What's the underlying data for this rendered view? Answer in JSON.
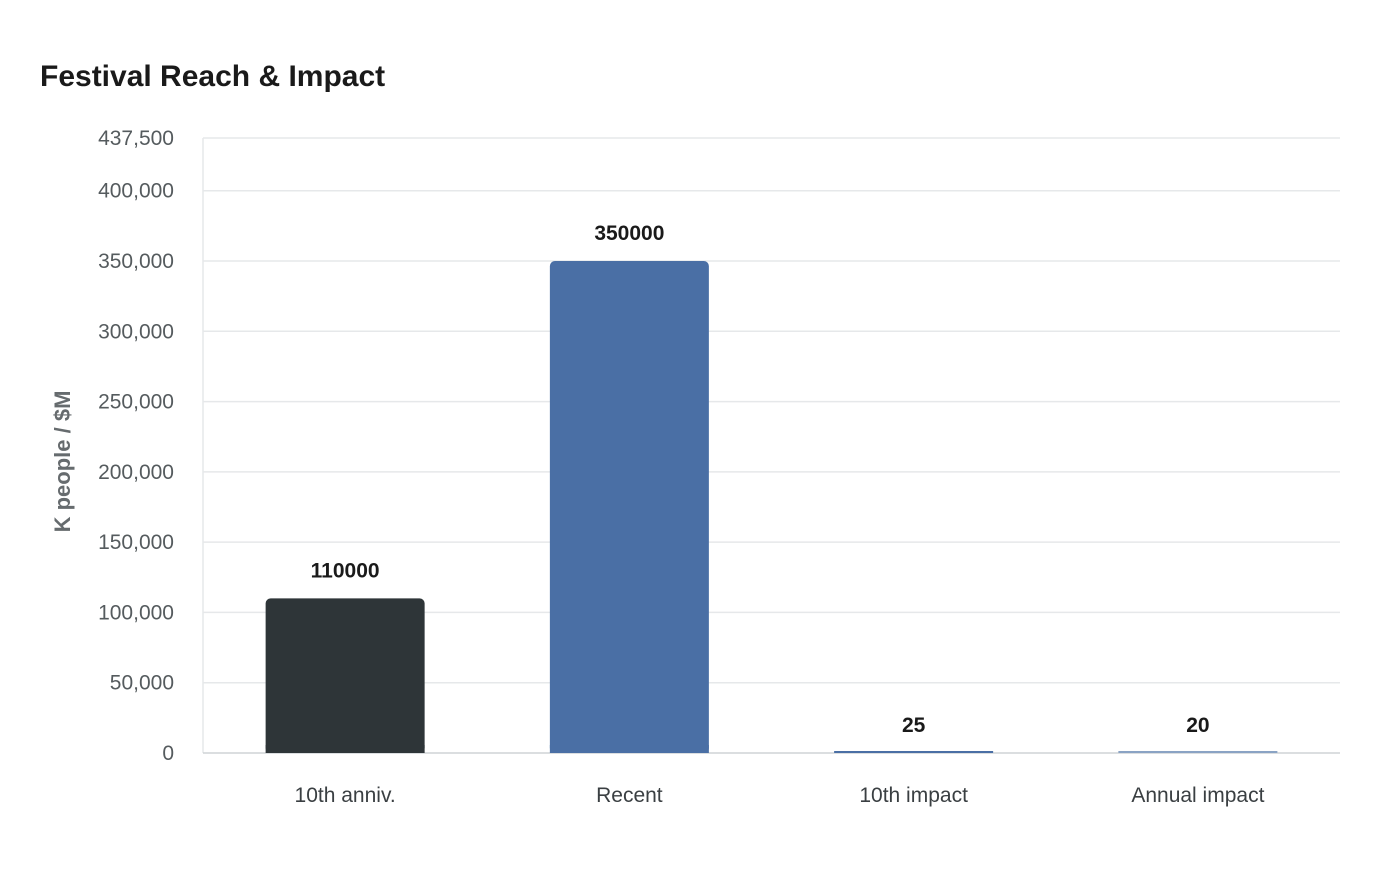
{
  "chart_data": {
    "type": "bar",
    "title": "Festival Reach & Impact",
    "xlabel": "",
    "ylabel": "K people / $M",
    "categories": [
      "10th anniv.",
      "Recent",
      "10th impact",
      "Annual impact"
    ],
    "values": [
      110000,
      350000,
      25,
      20
    ],
    "bar_colors": [
      "#2e3538",
      "#4a6fa5",
      "#4a6fa5",
      "#8aa3c4"
    ],
    "ylim": [
      0,
      437500
    ],
    "yticks": [
      0,
      50000,
      100000,
      150000,
      200000,
      250000,
      300000,
      350000,
      400000,
      437500
    ],
    "ytick_labels": [
      "0",
      "50,000",
      "100,000",
      "150,000",
      "200,000",
      "250,000",
      "300,000",
      "350,000",
      "400,000",
      "437,500"
    ],
    "value_labels": [
      "110000",
      "350000",
      "25",
      "20"
    ],
    "grid": true,
    "gridline_color": "#e6e8ea",
    "axis_color": "#cfd3d6"
  }
}
